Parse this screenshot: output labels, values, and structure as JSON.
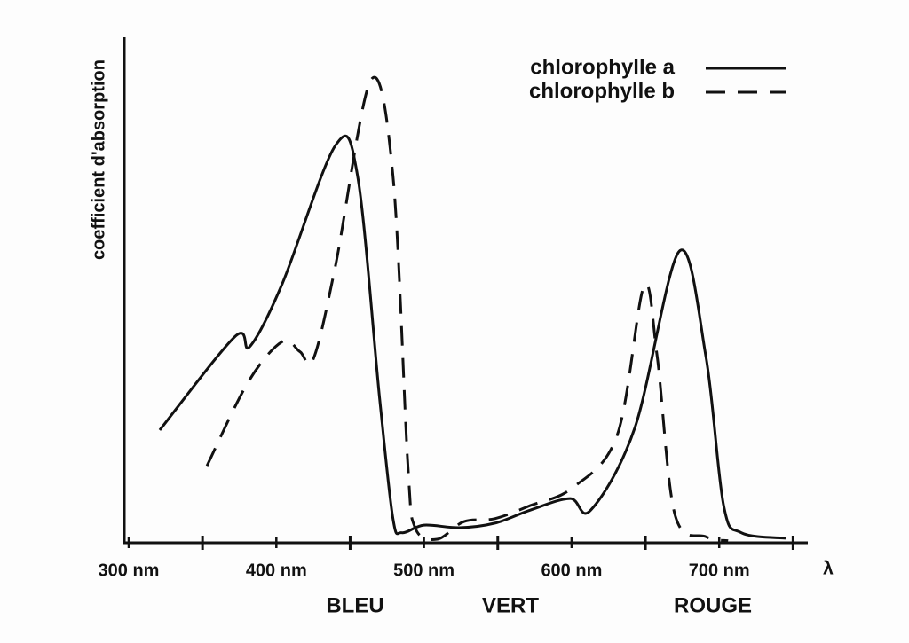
{
  "chart_data": {
    "type": "line",
    "ylabel": "coefficient d'absorption",
    "xlabel": "λ",
    "xlim": [
      297,
      760
    ],
    "ylim": [
      0,
      100
    ],
    "xticks": [
      {
        "value": 300,
        "label": "300 nm"
      },
      {
        "value": 400,
        "label": "400 nm"
      },
      {
        "value": 500,
        "label": "500 nm"
      },
      {
        "value": 600,
        "label": "600 nm"
      },
      {
        "value": 700,
        "label": "700 nm"
      }
    ],
    "xminorticks": [
      350,
      450,
      550,
      650,
      750
    ],
    "annotations": [
      "BLEU",
      "VERT",
      "ROUGE"
    ],
    "legend": "upper right",
    "series": [
      {
        "name": "chlorophylle a",
        "color": "#111111",
        "dash": "solid",
        "x": [
          321,
          372,
          382,
          404,
          440,
          455,
          470,
          479,
          485,
          500,
          524,
          548,
          572,
          599,
          613,
          643,
          673,
          691,
          703,
          715,
          745
        ],
        "values": [
          22.4,
          41,
          39,
          51.5,
          79,
          73,
          28.6,
          4.8,
          2,
          3.5,
          3,
          3.9,
          6.5,
          8.8,
          6.5,
          23,
          58,
          37,
          7.4,
          2,
          0.9
        ]
      },
      {
        "name": "chlorophylle b",
        "color": "#111111",
        "dash": "dashed",
        "x": [
          353,
          381,
          404,
          416,
          425,
          440,
          464,
          479,
          489,
          494,
          509,
          527,
          548,
          572,
          601,
          631,
          649,
          658,
          670,
          691,
          706
        ],
        "values": [
          15.3,
          32,
          40,
          38,
          36.5,
          55,
          92,
          73,
          16,
          3,
          0.7,
          4.2,
          4.8,
          7.4,
          11,
          21.5,
          51,
          37,
          5.6,
          1.2,
          0.4
        ]
      }
    ]
  }
}
